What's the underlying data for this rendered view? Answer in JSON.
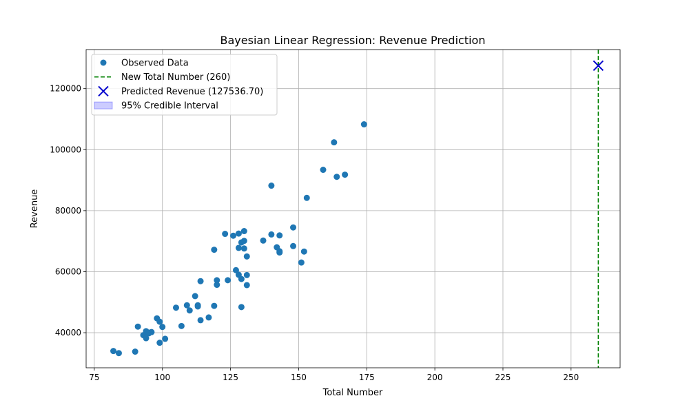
{
  "chart_data": {
    "type": "scatter",
    "title": "Bayesian Linear Regression: Revenue Prediction",
    "xlabel": "Total Number",
    "ylabel": "Revenue",
    "xlim": [
      72,
      268
    ],
    "ylim": [
      28500,
      132800
    ],
    "x_ticks": [
      75,
      100,
      125,
      150,
      175,
      200,
      225,
      250
    ],
    "y_ticks": [
      40000,
      60000,
      80000,
      100000,
      120000
    ],
    "grid": true,
    "legend_position": "top-left",
    "colors": {
      "observed": "#1f77b4",
      "new_line": "#008000",
      "prediction": "#0000cd",
      "interval": "#0000ff"
    },
    "legend": [
      {
        "label": "Observed Data",
        "kind": "point"
      },
      {
        "label": "New Total Number (260)",
        "kind": "dashed-line"
      },
      {
        "label": "Predicted Revenue (127536.70)",
        "kind": "x-marker"
      },
      {
        "label": "95% Credible Interval",
        "kind": "band"
      }
    ],
    "series": [
      {
        "name": "Observed Data",
        "points": [
          [
            82,
            34000
          ],
          [
            84,
            33300
          ],
          [
            90,
            33800
          ],
          [
            91,
            42000
          ],
          [
            93,
            39200
          ],
          [
            94,
            38200
          ],
          [
            94,
            40500
          ],
          [
            95,
            39800
          ],
          [
            95,
            40000
          ],
          [
            96,
            40200
          ],
          [
            98,
            44700
          ],
          [
            99,
            43600
          ],
          [
            99,
            36700
          ],
          [
            100,
            41900
          ],
          [
            101,
            38000
          ],
          [
            105,
            48200
          ],
          [
            107,
            42200
          ],
          [
            109,
            49000
          ],
          [
            110,
            47300
          ],
          [
            112,
            52000
          ],
          [
            113,
            49000
          ],
          [
            113,
            48600
          ],
          [
            114,
            56900
          ],
          [
            114,
            44100
          ],
          [
            117,
            45000
          ],
          [
            119,
            67200
          ],
          [
            119,
            48800
          ],
          [
            120,
            57200
          ],
          [
            120,
            55700
          ],
          [
            123,
            72400
          ],
          [
            124,
            57200
          ],
          [
            126,
            71800
          ],
          [
            127,
            60500
          ],
          [
            128,
            72500
          ],
          [
            128,
            67800
          ],
          [
            128,
            59000
          ],
          [
            129,
            69600
          ],
          [
            129,
            57600
          ],
          [
            129,
            48400
          ],
          [
            130,
            73300
          ],
          [
            130,
            70100
          ],
          [
            130,
            67600
          ],
          [
            131,
            65000
          ],
          [
            131,
            58900
          ],
          [
            131,
            55600
          ],
          [
            137,
            70200
          ],
          [
            140,
            88200
          ],
          [
            140,
            72200
          ],
          [
            142,
            68000
          ],
          [
            143,
            71900
          ],
          [
            143,
            66700
          ],
          [
            143,
            66300
          ],
          [
            148,
            74500
          ],
          [
            148,
            68400
          ],
          [
            151,
            63000
          ],
          [
            152,
            66600
          ],
          [
            153,
            84200
          ],
          [
            159,
            93400
          ],
          [
            163,
            102400
          ],
          [
            164,
            91100
          ],
          [
            167,
            91800
          ],
          [
            174,
            108300
          ]
        ]
      }
    ],
    "new_x": 260,
    "predicted_revenue": 127536.7,
    "credible_interval": null
  }
}
